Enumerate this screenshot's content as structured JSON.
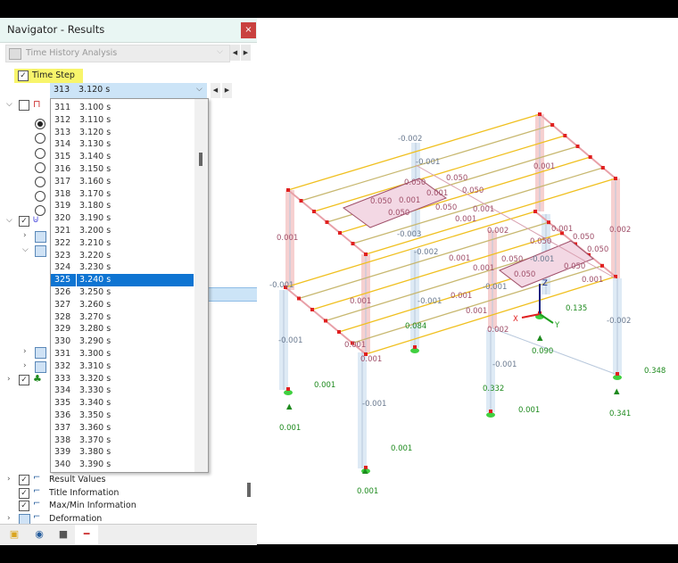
{
  "navigator": {
    "title": "Navigator - Results",
    "close_icon": "×",
    "analysis_combo": "Time History Analysis",
    "time_step_label": "Time Step",
    "time_step_checked": true,
    "selected_step": {
      "number": "313",
      "time": "3.120 s"
    },
    "steps": [
      [
        "311",
        "3.100 s"
      ],
      [
        "312",
        "3.110 s"
      ],
      [
        "313",
        "3.120 s"
      ],
      [
        "314",
        "3.130 s"
      ],
      [
        "315",
        "3.140 s"
      ],
      [
        "316",
        "3.150 s"
      ],
      [
        "317",
        "3.160 s"
      ],
      [
        "318",
        "3.170 s"
      ],
      [
        "319",
        "3.180 s"
      ],
      [
        "320",
        "3.190 s"
      ],
      [
        "321",
        "3.200 s"
      ],
      [
        "322",
        "3.210 s"
      ],
      [
        "323",
        "3.220 s"
      ],
      [
        "324",
        "3.230 s"
      ],
      [
        "325",
        "3.240 s"
      ],
      [
        "326",
        "3.250 s"
      ],
      [
        "327",
        "3.260 s"
      ],
      [
        "328",
        "3.270 s"
      ],
      [
        "329",
        "3.280 s"
      ],
      [
        "330",
        "3.290 s"
      ],
      [
        "331",
        "3.300 s"
      ],
      [
        "332",
        "3.310 s"
      ],
      [
        "333",
        "3.320 s"
      ],
      [
        "334",
        "3.330 s"
      ],
      [
        "335",
        "3.340 s"
      ],
      [
        "336",
        "3.350 s"
      ],
      [
        "337",
        "3.360 s"
      ],
      [
        "338",
        "3.370 s"
      ],
      [
        "339",
        "3.380 s"
      ],
      [
        "340",
        "3.390 s"
      ]
    ],
    "highlighted_step": "325",
    "bottom_items": [
      {
        "label": "Result Values",
        "checked": true,
        "icon": "result-values-icon"
      },
      {
        "label": "Title Information",
        "checked": true,
        "icon": "title-info-icon"
      },
      {
        "label": "Max/Min Information",
        "checked": true,
        "icon": "maxmin-info-icon"
      },
      {
        "label": "Deformation",
        "checked": false,
        "icon": "deformation-icon"
      }
    ],
    "tabs": [
      "data-icon",
      "eye-icon",
      "camera-icon",
      "results-icon"
    ]
  },
  "model": {
    "axes": {
      "x": "X",
      "y": "Y",
      "z": "Z"
    },
    "member_labels": [
      "-0.002",
      "-0.001",
      "0.001",
      "0.050",
      "0.050",
      "0.001",
      "0.050",
      "0.050",
      "0.001",
      "0.050",
      "0.001",
      "0.050",
      "0.001",
      "0.001",
      "-0.003",
      "0.002",
      "0.001",
      "0.002",
      "0.050",
      "0.050",
      "0.050",
      "-0.002",
      "0.001",
      "0.001",
      "0.050",
      "-0.001",
      "0.050",
      "0.050",
      "0.001",
      "-0.001",
      "-0.001",
      "0.001",
      "0.001",
      "-0.001",
      "0.001",
      "0.002",
      "0.001",
      "0.001",
      "-0.001",
      "-0.002",
      "-0.001",
      "-0.001"
    ],
    "reaction_labels": [
      "0.135",
      "0.084",
      "0.090",
      "0.001",
      "0.332",
      "0.001",
      "0.341",
      "0.348",
      "0.001",
      "0.001",
      "0.001"
    ],
    "colors": {
      "member_label": "#a0506a",
      "column_label": "#6a7a90",
      "reaction": "#1e8a1e",
      "beam_yellow": "#f0c020",
      "beam_olive": "#c8b870",
      "column_red": "#f5c8c8",
      "column_blue": "#d8e6f3"
    }
  }
}
